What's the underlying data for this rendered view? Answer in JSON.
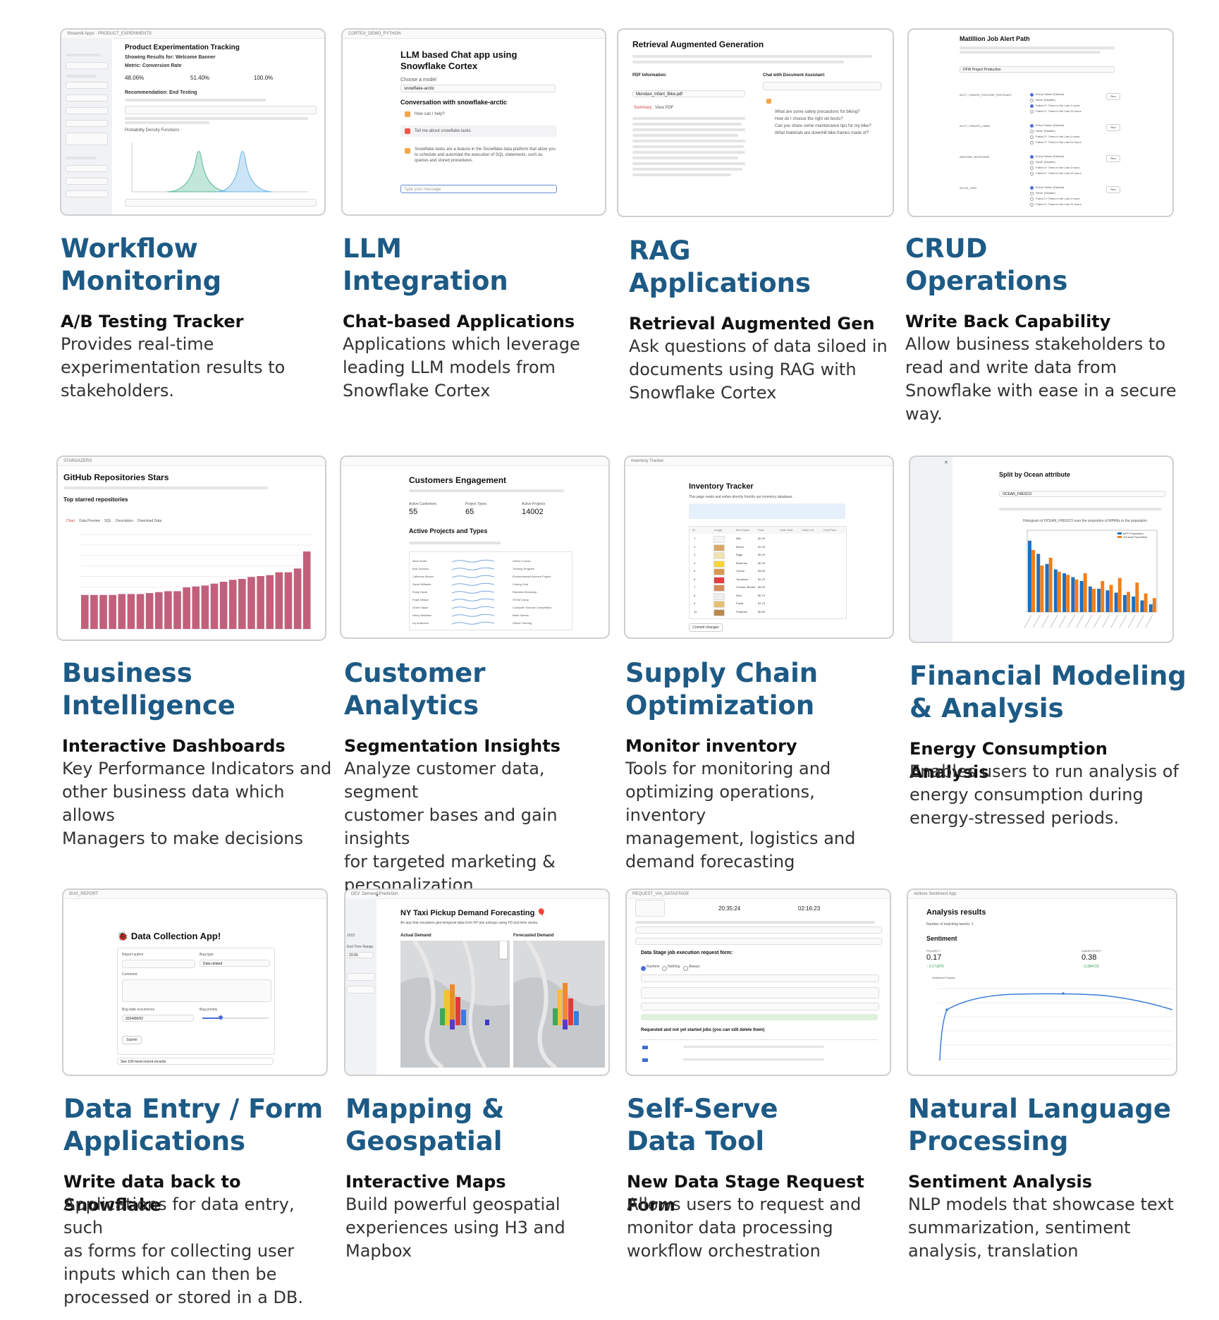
{
  "cards": [
    {
      "title_lines": [
        "Workflow",
        "Monitoring"
      ],
      "subtitle": "A/B Testing Tracker",
      "description_lines": [
        "Provides real-time",
        "experimentation results to",
        "stakeholders."
      ],
      "preview": {
        "heading": "Product Experimentation Tracking",
        "showing": "Showing Results for: Welcome Banner",
        "metric": "Metric: Conversion Rate",
        "values": [
          "48.06%",
          "51.40%",
          "100.0%"
        ],
        "recommendation": "Recommendation: End Testing",
        "chart_label": "Probability Density Functions"
      }
    },
    {
      "title_lines": [
        "LLM",
        "Integration"
      ],
      "subtitle": "Chat-based Applications",
      "description_lines": [
        "Applications which leverage",
        "leading LLM models from",
        "Snowflake Cortex"
      ],
      "preview": {
        "breadcrumb": "CORTEX_DEMO_PYTHON",
        "heading": "LLM based Chat app using Snowflake Cortex",
        "choose_label": "Choose a model",
        "model": "snowflake-arctic",
        "conversation": "Conversation with snowflake-arctic",
        "messages": [
          "How can I help?",
          "Tell me about snowflake tasks"
        ],
        "reply": "Snowflake tasks are a feature in the Snowflake data platform that allow you to schedule and automate the execution of SQL statements, such as queries and stored procedures.",
        "input_placeholder": "Type your message"
      }
    },
    {
      "title_lines": [
        "RAG",
        "Applications"
      ],
      "subtitle": "Retrieval Augmented Gen",
      "description_lines": [
        "Ask questions of data siloed in",
        "documents using RAG with",
        "Snowflake Cortex"
      ],
      "preview": {
        "heading": "Retrieval Augmented Generation",
        "pdf_label": "PDF Information:",
        "file": "Mondavi_Infant_Bike.pdf",
        "chat_label": "Chat with Document Assistant:",
        "tabs": [
          "Summary",
          "View PDF"
        ],
        "questions": [
          "What are some safety precautions for biking?",
          "How do I choose the right ski boots?",
          "Can you share some maintenance tips for my bike?",
          "What materials are downhill bike frames made of?"
        ]
      }
    },
    {
      "title_lines": [
        "CRUD",
        "Operations"
      ],
      "subtitle": "Write Back Capability",
      "description_lines": [
        "Allow business stakeholders to",
        "read and write data from",
        "Snowflake with ease in a secure",
        "way."
      ],
      "preview": {
        "heading": "Matillion Job Alert Path",
        "project": "DFW Project Production",
        "jobs": [
          "ACCT_CREATE_FEATURE_FIRSTDATE",
          "ACCT_CREATE_LABEL",
          "AIRCODE_RESPONSE",
          "ATLAS_CRM"
        ],
        "options": [
          "Every Failure (Default)",
          "Never (Disable)",
          "Failed 2+ Times in the Last 4 hours",
          "Failed 2+ Times in the Last 24 hours"
        ],
        "run_label": "Run"
      }
    },
    {
      "title_lines": [
        "Business",
        "Intelligence"
      ],
      "subtitle": "Interactive Dashboards",
      "description_lines": [
        "Key Performance Indicators and",
        "other business data which allows",
        "Managers to make decisions"
      ],
      "preview": {
        "breadcrumb": "STARGAZERS",
        "heading": "GitHub Repositories Stars",
        "subheading": "Top starred repositories",
        "tabs": [
          "Chart",
          "Data Preview",
          "SQL",
          "Description",
          "Download Data"
        ],
        "bar_levels": [
          0.36,
          0.36,
          0.36,
          0.36,
          0.37,
          0.37,
          0.37,
          0.38,
          0.39,
          0.4,
          0.4,
          0.44,
          0.45,
          0.46,
          0.48,
          0.5,
          0.52,
          0.53,
          0.55,
          0.56,
          0.57,
          0.6,
          0.6,
          0.64,
          0.82
        ],
        "bar_color": "#c2607c"
      }
    },
    {
      "title_lines": [
        "Customer",
        "Analytics"
      ],
      "subtitle": "Segmentation Insights",
      "description_lines": [
        "Analyze customer data, segment",
        "customer bases and gain insights",
        "for targeted marketing &",
        "personalization"
      ],
      "preview": {
        "heading": "Customers Engagement",
        "metrics": [
          {
            "label": "Active Customers",
            "value": "55"
          },
          {
            "label": "Project Types",
            "value": "65"
          },
          {
            "label": "Active Projects",
            "value": "14002"
          }
        ],
        "section": "Active Projects and Types",
        "customers": [
          "Alice Smith",
          "Bob Johnson",
          "Catherine Brown",
          "David Williams",
          "Emily Davis",
          "Frank Wilson",
          "Grace Taylor",
          "Henry Martinez",
          "Ivy Anderson"
        ],
        "projects": [
          "Online Course",
          "Tutoring Program",
          "Environmental Science Project",
          "Coding Club",
          "Robotics Workshop",
          "STEM Camp",
          "Computer Science Competition",
          "Math Games",
          "Online Tutoring"
        ]
      }
    },
    {
      "title_lines": [
        "Supply Chain",
        "Optimization"
      ],
      "subtitle": "Monitor inventory",
      "description_lines": [
        "Tools for monitoring and",
        "optimizing operations, inventory",
        "management, logistics and",
        "demand forecasting"
      ],
      "preview": {
        "breadcrumb": "Inventory Tracker",
        "heading": "Inventory Tracker",
        "intro": "This page reads and writes directly from/to our inventory database.",
        "columns": [
          "ID",
          "Image",
          "Item Name",
          "Price",
          "Units Sold",
          "Units Left",
          "Cost Price"
        ],
        "items": [
          "Milk",
          "Bread",
          "Eggs",
          "Bananas",
          "Cereal",
          "Tomatoes",
          "Chicken Breast",
          "Rice",
          "Pasta",
          "Potatoes"
        ],
        "prices": [
          "$2.99",
          "$1.99",
          "$2.49",
          "$0.49",
          "$3.69",
          "$1.29",
          "$5.99",
          "$0.79",
          "$1.79",
          "$0.89"
        ],
        "commit": "Commit changes"
      }
    },
    {
      "title_lines": [
        "Financial Modeling",
        "& Analysis"
      ],
      "subtitle": "Energy Consumption Analysis",
      "description_lines": [
        "Enables users to run analysis of",
        "energy consumption during",
        "energy-stressed periods."
      ],
      "preview": {
        "heading": "Split by Ocean attribute",
        "select": "OCEAN_FRESCO",
        "chart_title": "Histogram of OCEAN_FRESCO over the proportion of MPANs in the population",
        "legend": [
          "MPD Population",
          "General Population"
        ],
        "blue_levels": [
          0.92,
          0.75,
          0.62,
          0.55,
          0.5,
          0.45,
          0.4,
          0.33,
          0.3,
          0.28,
          0.25,
          0.22,
          0.2,
          0.15,
          0.1
        ],
        "orange_levels": [
          0.8,
          0.6,
          0.7,
          0.52,
          0.48,
          0.42,
          0.5,
          0.3,
          0.4,
          0.35,
          0.44,
          0.26,
          0.38,
          0.24,
          0.18
        ],
        "colors": {
          "blue": "#1f6fc0",
          "orange": "#f07f1a"
        }
      }
    },
    {
      "title_lines": [
        "Data Entry / Form",
        "Applications"
      ],
      "subtitle": "Write data back to Snowflake",
      "description_lines": [
        "Applications for data entry, such",
        "as forms for collecting user",
        "inputs which can then be",
        "processed or stored in a DB."
      ],
      "preview": {
        "breadcrumb": "BUG_REPORT",
        "heading": "Data Collection App!",
        "fields": [
          "Report author",
          "Bug type",
          "Comment",
          "Bug date occurrence",
          "Bug priority"
        ],
        "bug_type": "Data related",
        "date": "2024/06/02",
        "submit": "Submit",
        "expander": "See 100 most recent records"
      }
    },
    {
      "title_lines": [
        "Mapping &",
        "Geospatial"
      ],
      "subtitle": "Interactive Maps",
      "description_lines": [
        "Build powerful geospatial",
        "experiences using H3 and",
        "Mapbox"
      ],
      "preview": {
        "breadcrumb": "DEV: Demand Prediction",
        "heading": "NY Taxi Pickup Demand Forecasting",
        "intro": "An app that visualizes geo-temporal data from NY taxi pickups using H3 and time series.",
        "left_label": "Actual Demand",
        "right_label": "Forecasted Demand",
        "side_labels": [
          "2015",
          "End Time Range",
          "23:00"
        ]
      }
    },
    {
      "title_lines": [
        "Self-Serve",
        "Data Tool"
      ],
      "subtitle": "New Data Stage Request Form",
      "description_lines": [
        "Allows users to request and",
        "monitor data processing",
        "workflow orchestration"
      ],
      "preview": {
        "breadcrumb": "REQUEST_VIA_DATASTAGE",
        "times": [
          "20:35:24",
          "02:16:23"
        ],
        "form_title": "Data Stage job execution request form:",
        "options": [
          "Runtime",
          "Nothing",
          "Always"
        ],
        "pending": "Requested and not yet started jobs (you can still delete them)"
      }
    },
    {
      "title_lines": [
        "Natural Language",
        "Processing"
      ],
      "subtitle": "Sentiment Analysis",
      "description_lines": [
        "NLP models that showcase text",
        "summarization, sentiment",
        "analysis, translation"
      ],
      "preview": {
        "breadcrumb": "Airlines Sentiment App",
        "heading": "Analysis results",
        "matching": "Number of matching tweets: 1",
        "section": "Sentiment",
        "polarity_label": "POLARITY",
        "polarity": "0.17",
        "polarity_delta": "↑ 0.171875",
        "subjectivity_label": "SUBJECTIVITY",
        "subjectivity": "0.38",
        "subjectivity_delta": "↑ 0.384722",
        "chart_label": "Sentiment Polarity"
      }
    }
  ]
}
